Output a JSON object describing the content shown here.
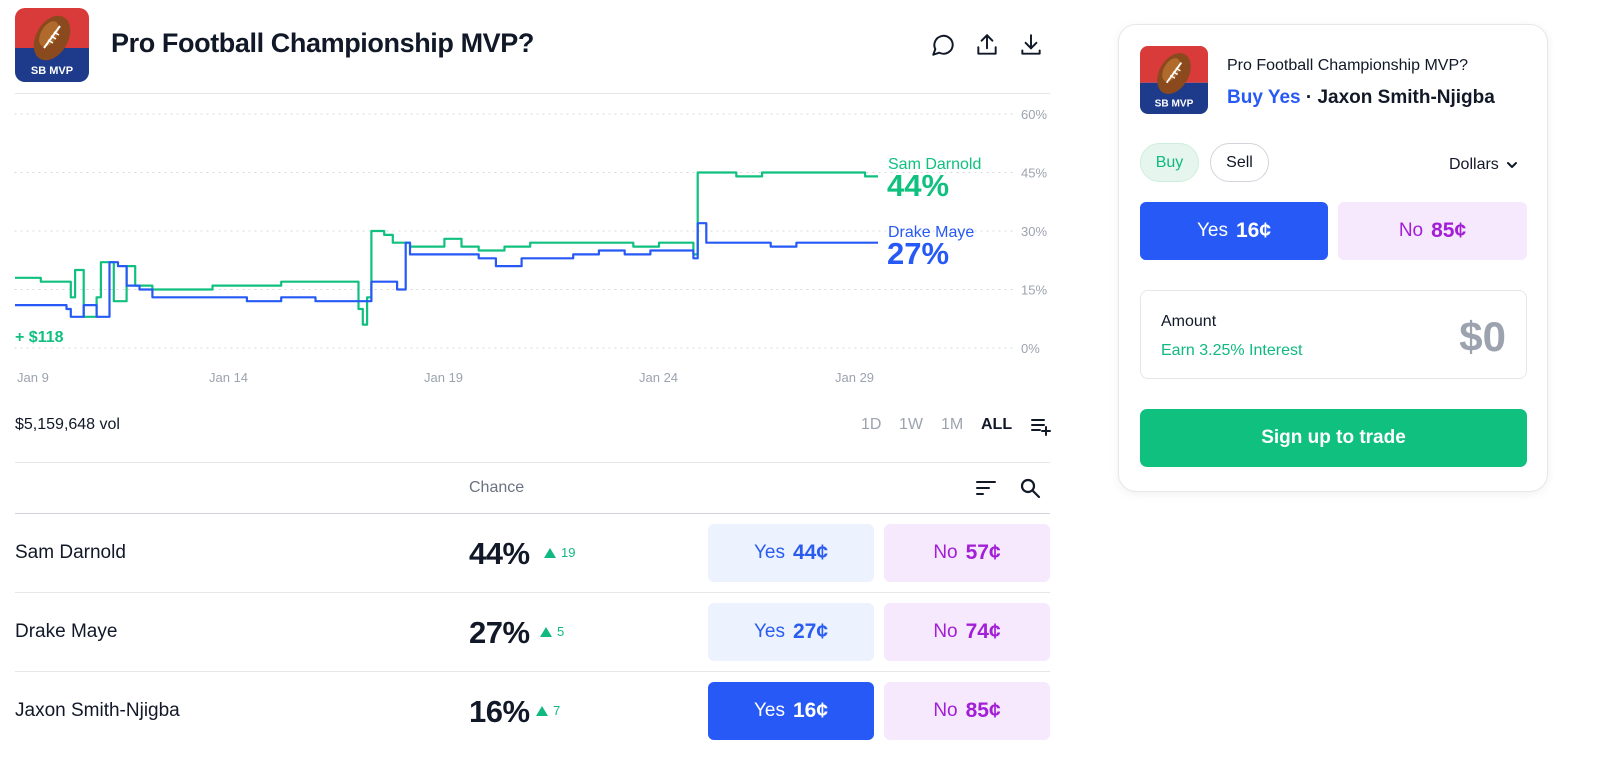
{
  "header": {
    "title": "Pro Football Championship MVP?",
    "logo_text": "SB MVP",
    "icons": [
      "comment-icon",
      "share-icon",
      "download-icon"
    ]
  },
  "chart_data": {
    "type": "line",
    "x_ticks": [
      "Jan 9",
      "Jan 14",
      "Jan 19",
      "Jan 24",
      "Jan 29"
    ],
    "y_ticks": [
      "60%",
      "45%",
      "30%",
      "15%",
      "0%"
    ],
    "ylim": [
      0,
      60
    ],
    "grid": true,
    "annotation": "+ $118",
    "series": [
      {
        "name": "Sam Darnold",
        "color": "#10c07f",
        "current": "44%",
        "x": [
          0,
          0.6,
          1.2,
          1.3,
          1.4,
          1.6,
          1.9,
          2,
          2.3,
          2.6,
          2.8,
          3.2,
          3.8,
          4.6,
          5.4,
          6.2,
          7,
          7.8,
          8,
          8.1,
          8.2,
          8.3,
          8.4,
          8.6,
          8.8,
          9.2,
          9.6,
          10,
          10.4,
          10.8,
          11.4,
          12,
          12.6,
          13.2,
          13.8,
          14.4,
          15,
          15.6,
          15.8,
          15.9,
          16.2,
          16.8,
          17.4,
          18,
          18.6,
          19.2,
          19.8,
          20.1
        ],
        "values": [
          18,
          17,
          17,
          13,
          20,
          8,
          13,
          22,
          12,
          21,
          16,
          15,
          15,
          16,
          16,
          17,
          17,
          17,
          10,
          6,
          13,
          30,
          30,
          29,
          27,
          26,
          26,
          28,
          26,
          25,
          26,
          27,
          27,
          27,
          27,
          26,
          27,
          27,
          24,
          45,
          45,
          44,
          45,
          45,
          45,
          45,
          44,
          44
        ]
      },
      {
        "name": "Drake Maye",
        "color": "#2659f5",
        "current": "27%",
        "x": [
          0,
          0.6,
          1.2,
          1.3,
          1.6,
          1.9,
          2.2,
          2.4,
          2.6,
          2.9,
          3.2,
          3.8,
          4.6,
          5.4,
          6.2,
          7,
          7.6,
          8,
          8.3,
          8.6,
          8.9,
          9.1,
          9.2,
          9.6,
          10.2,
          10.8,
          11.2,
          11.8,
          12.4,
          13,
          13.6,
          14.2,
          14.8,
          15.4,
          15.8,
          15.9,
          16.1,
          16.4,
          17,
          17.6,
          18.2,
          18.8,
          19.4,
          20.1
        ],
        "values": [
          11,
          11,
          10,
          8,
          11,
          8,
          22,
          21,
          16,
          15,
          13,
          13,
          13,
          12,
          13,
          12,
          12,
          12,
          17,
          17,
          15,
          27,
          24,
          24,
          24,
          23,
          21,
          23,
          23,
          24,
          25,
          24,
          25,
          25,
          23,
          32,
          27,
          27,
          27,
          26,
          27,
          27,
          27,
          27
        ]
      }
    ]
  },
  "volume": "$5,159,648 vol",
  "ranges": [
    "1D",
    "1W",
    "1M",
    "ALL"
  ],
  "list_header": {
    "chance_label": "Chance"
  },
  "outcomes": [
    {
      "name": "Sam Darnold",
      "chance": "44%",
      "delta": "19",
      "yes_label": "Yes",
      "yes_price": "44¢",
      "no_label": "No",
      "no_price": "57¢"
    },
    {
      "name": "Drake Maye",
      "chance": "27%",
      "delta": "5",
      "yes_label": "Yes",
      "yes_price": "27¢",
      "no_label": "No",
      "no_price": "74¢"
    },
    {
      "name": "Jaxon Smith-Njigba",
      "chance": "16%",
      "delta": "7",
      "yes_label": "Yes",
      "yes_price": "16¢",
      "no_label": "No",
      "no_price": "85¢"
    }
  ],
  "panel": {
    "title": "Pro Football Championship MVP?",
    "action": "Buy Yes",
    "separator": " · ",
    "selection": "Jaxon Smith-Njigba",
    "buy_label": "Buy",
    "sell_label": "Sell",
    "currency": "Dollars",
    "yes_label": "Yes",
    "yes_price": "16¢",
    "no_label": "No",
    "no_price": "85¢",
    "amount_label": "Amount",
    "interest": "Earn 3.25% Interest",
    "amount_value": "$0",
    "signup": "Sign up to trade"
  },
  "colors": {
    "green": "#10c07f",
    "blue": "#2659f5",
    "purple": "#a21fd6"
  }
}
